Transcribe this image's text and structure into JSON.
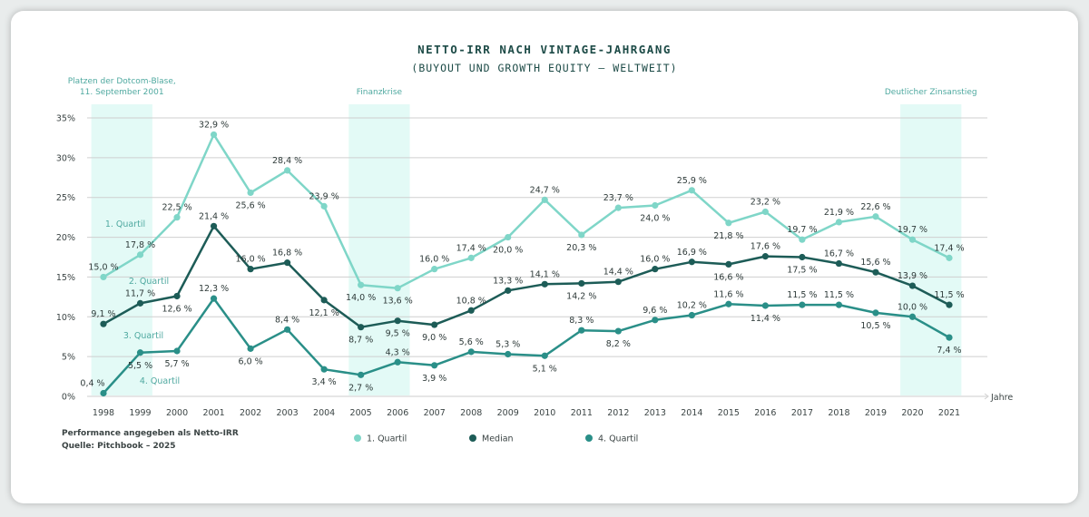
{
  "chart_data": {
    "type": "line",
    "title": "NETTO-IRR NACH VINTAGE-JAHRGANG",
    "subtitle": "(BUYOUT UND GROWTH EQUITY – WELTWEIT)",
    "xlabel": "Jahre",
    "ylabel": "",
    "ylim": [
      0,
      35
    ],
    "yticks": [
      "0%",
      "5%",
      "10%",
      "15%",
      "20%",
      "25%",
      "30%",
      "35%"
    ],
    "grid": true,
    "legend_position": "bottom",
    "x": [
      "1998",
      "1999",
      "2000",
      "2001",
      "2002",
      "2003",
      "2004",
      "2005",
      "2006",
      "2007",
      "2008",
      "2009",
      "2010",
      "2011",
      "2012",
      "2013",
      "2014",
      "2015",
      "2016",
      "2017",
      "2018",
      "2019",
      "2020",
      "2021"
    ],
    "series": [
      {
        "name": "1. Quartil",
        "color": "#7fd6c8",
        "values": [
          15.0,
          17.8,
          22.5,
          32.9,
          25.6,
          28.4,
          23.9,
          14.0,
          13.6,
          16.0,
          17.4,
          20.0,
          24.7,
          20.3,
          23.7,
          24.0,
          25.9,
          21.8,
          23.2,
          19.7,
          21.9,
          22.6,
          19.7,
          17.4
        ]
      },
      {
        "name": "Median",
        "color": "#1d5c57",
        "values": [
          9.1,
          11.7,
          12.6,
          21.4,
          16.0,
          16.8,
          12.1,
          8.7,
          9.5,
          9.0,
          10.8,
          13.3,
          14.1,
          14.2,
          14.4,
          16.0,
          16.9,
          16.6,
          17.6,
          17.5,
          16.7,
          15.6,
          13.9,
          11.5
        ]
      },
      {
        "name": "4. Quartil",
        "color": "#2a8f88",
        "values": [
          0.4,
          5.5,
          5.7,
          12.3,
          6.0,
          8.4,
          3.4,
          2.7,
          4.3,
          3.9,
          5.6,
          5.3,
          5.1,
          8.3,
          8.2,
          9.6,
          10.2,
          11.6,
          11.4,
          11.5,
          11.5,
          10.5,
          10.0,
          7.4
        ]
      }
    ],
    "series_labels": [
      "1. Quartil",
      "2. Quartil",
      "3. Quartil",
      "4. Quartil"
    ],
    "highlight_periods": [
      {
        "label_lines": [
          "Platzen der Dotcom-Blase,",
          "11. September 2001"
        ],
        "from": "1998",
        "to": "1999"
      },
      {
        "label_lines": [
          "Finanzkrise"
        ],
        "from": "2005",
        "to": "2006"
      },
      {
        "label_lines": [
          "Deutlicher Zinsanstieg"
        ],
        "from": "2020",
        "to": "2021"
      }
    ],
    "band_color": "#e3faf6",
    "annotation_color": "#4fa9a0"
  },
  "footnote": [
    "Performance angegeben als Netto-IRR",
    "Quelle: Pitchbook – 2025"
  ]
}
